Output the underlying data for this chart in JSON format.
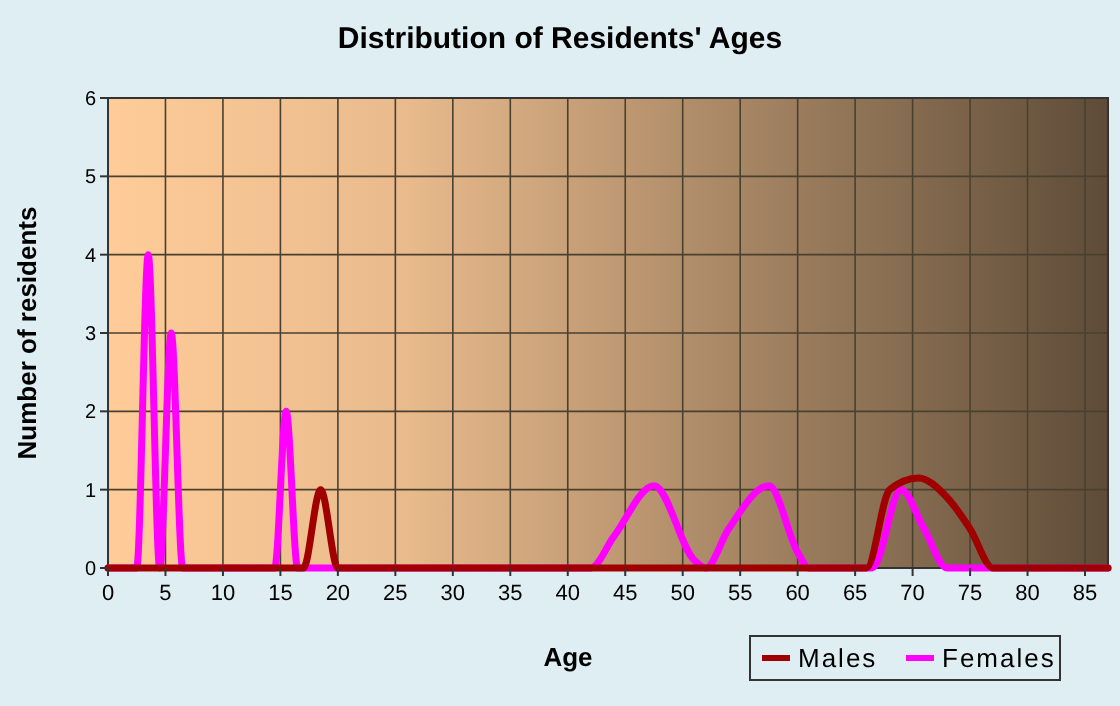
{
  "chart_data": {
    "type": "line",
    "title": "Distribution of Residents' Ages",
    "xlabel": "Age",
    "ylabel": "Number of residents",
    "xlim": [
      0,
      87
    ],
    "xticks": [
      0,
      5,
      10,
      15,
      20,
      25,
      30,
      35,
      40,
      45,
      50,
      55,
      60,
      65,
      70,
      75,
      80,
      85
    ],
    "ylim": [
      0,
      6
    ],
    "yticks": [
      0,
      1,
      2,
      3,
      4,
      5,
      6
    ],
    "grid": true,
    "legend": "bottom right",
    "line_style": "solid",
    "series": [
      {
        "name": "Males",
        "color": "#a00000",
        "x": [
          0,
          17,
          18.5,
          20,
          65,
          66,
          68,
          70.5,
          73,
          75,
          77,
          87
        ],
        "values": [
          0,
          0,
          1,
          0,
          0,
          0,
          1,
          1.15,
          0.9,
          0.5,
          0,
          0
        ]
      },
      {
        "name": "Females",
        "color": "#ff00ff",
        "x": [
          0,
          2.5,
          3.5,
          4.5,
          5.5,
          6.5,
          14.5,
          15.5,
          16.5,
          42,
          44,
          47.5,
          51,
          52,
          54,
          57.5,
          60,
          61,
          66.5,
          69,
          71,
          73,
          87
        ],
        "values": [
          0,
          0,
          4,
          0,
          3,
          0,
          0,
          2,
          0,
          0,
          0.4,
          1.05,
          0.1,
          0,
          0.5,
          1.05,
          0.2,
          0,
          0,
          1,
          0.5,
          0,
          0
        ]
      }
    ]
  }
}
